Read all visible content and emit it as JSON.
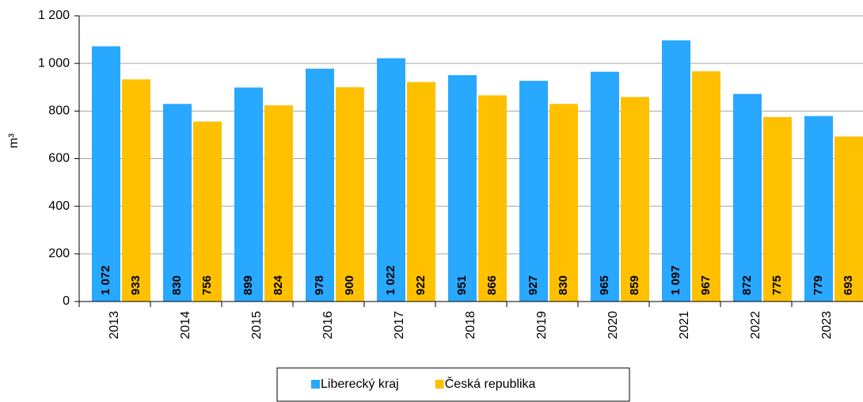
{
  "chart_data": {
    "type": "bar",
    "y_label": "m³",
    "categories": [
      "2013",
      "2014",
      "2015",
      "2016",
      "2017",
      "2018",
      "2019",
      "2020",
      "2021",
      "2022",
      "2023"
    ],
    "series": [
      {
        "name": "Liberecký kraj",
        "color": "#29a8ff",
        "values": [
          1072,
          830,
          899,
          978,
          1022,
          951,
          927,
          965,
          1097,
          872,
          779
        ],
        "value_labels": [
          "1 072",
          "830",
          "899",
          "978",
          "1 022",
          "951",
          "927",
          "965",
          "1 097",
          "872",
          "779"
        ]
      },
      {
        "name": "Česká republika",
        "color": "#ffc000",
        "values": [
          933,
          756,
          824,
          900,
          922,
          866,
          830,
          859,
          967,
          775,
          693
        ]
      }
    ],
    "ylim": [
      0,
      1200
    ],
    "yticks": [
      0,
      200,
      400,
      600,
      800,
      {
        "value": 1000,
        "label": "1 000"
      },
      {
        "value": 1200,
        "label": "1 200"
      }
    ],
    "grid": true
  }
}
